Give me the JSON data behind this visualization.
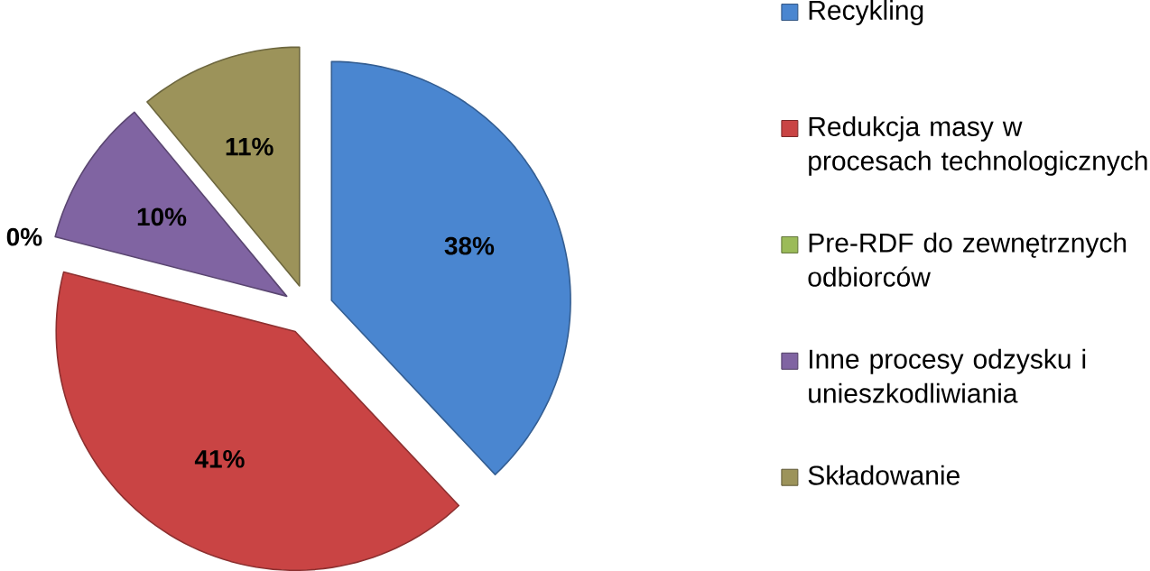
{
  "chart_data": {
    "type": "pie",
    "categories": [
      "Recykling",
      "Redukcja masy w procesach technologicznych",
      "Pre-RDF do zewnętrznych odbiorców",
      "Inne procesy odzysku i unieszkodliwiania",
      "Składowanie"
    ],
    "values": [
      38,
      41,
      0,
      10,
      11
    ],
    "colors": [
      "#4a86d0",
      "#c94444",
      "#9bbb59",
      "#8064a2",
      "#9c935a"
    ],
    "value_labels": [
      "38%",
      "41%",
      "0%",
      "10%",
      "11%"
    ],
    "legend": "right"
  }
}
